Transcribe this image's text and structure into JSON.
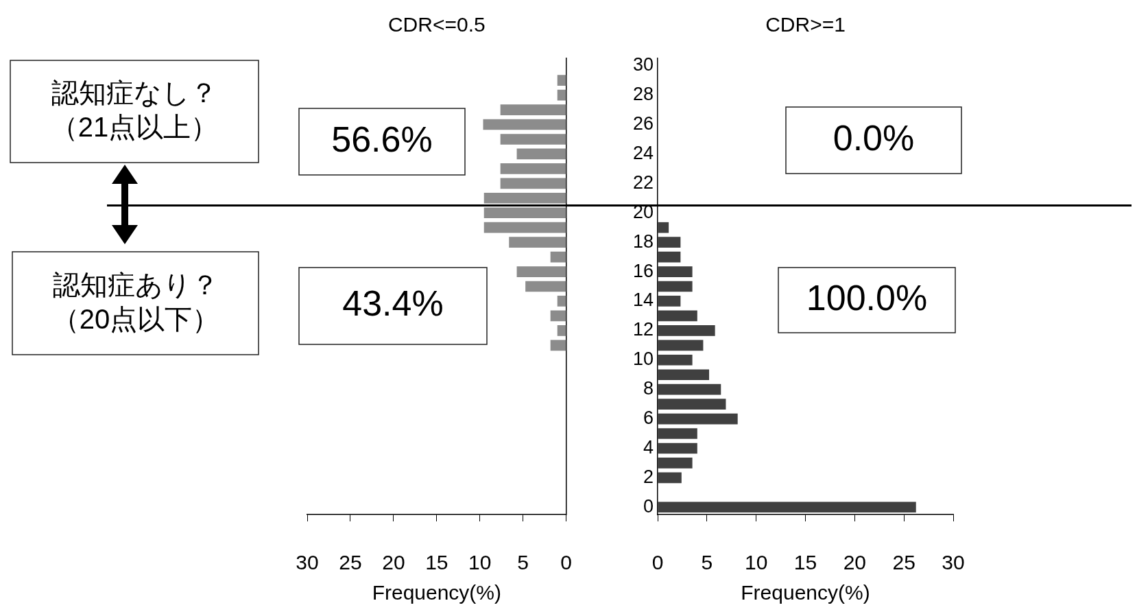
{
  "chart_data": [
    {
      "type": "bar",
      "orientation": "horizontal",
      "title": "CDR<=0.5",
      "xlabel": "Frequency(%)",
      "x": [
        11,
        12,
        13,
        14,
        15,
        16,
        17,
        18,
        19,
        20,
        21,
        22,
        23,
        24,
        25,
        26,
        27,
        28,
        29
      ],
      "values": [
        1.8,
        1.0,
        1.8,
        1.0,
        4.7,
        5.7,
        1.8,
        6.6,
        9.5,
        9.5,
        9.5,
        7.6,
        7.6,
        5.7,
        7.6,
        9.6,
        7.6,
        1.0,
        1.0
      ],
      "color": "#8c8c8c",
      "xlim": [
        30,
        0
      ],
      "xticks": [
        30,
        25,
        20,
        15,
        10,
        5,
        0
      ],
      "ylim": [
        -0.5,
        30.5
      ],
      "yticks": [
        0,
        2,
        4,
        6,
        8,
        10,
        12,
        14,
        16,
        18,
        20,
        22,
        24,
        26,
        28,
        30
      ],
      "tick_labels": "x",
      "ref_lines": [
        {
          "axis": "y",
          "value": 20.5,
          "label": null
        }
      ],
      "annotations": [
        "認知症なし？",
        "（21点以上）",
        "56.6%",
        "認知症あり？",
        "（20点以下）",
        "43.4%"
      ]
    },
    {
      "type": "bar",
      "orientation": "horizontal",
      "title": "CDR>=1",
      "xlabel": "Frequency(%)",
      "x": [
        0,
        2,
        3,
        4,
        5,
        6,
        7,
        8,
        9,
        10,
        11,
        12,
        13,
        14,
        15,
        16,
        17,
        18,
        19
      ],
      "values": [
        26.2,
        2.4,
        3.5,
        4.0,
        4.0,
        8.1,
        6.9,
        6.4,
        5.2,
        3.5,
        4.6,
        5.8,
        4.0,
        2.3,
        3.5,
        3.5,
        2.3,
        2.3,
        1.1
      ],
      "color": "#404040",
      "xlim": [
        0,
        30
      ],
      "xticks": [
        0,
        5,
        10,
        15,
        20,
        25,
        30
      ],
      "ylim": [
        -0.5,
        30.5
      ],
      "yticks": [
        0,
        2,
        4,
        6,
        8,
        10,
        12,
        14,
        16,
        18,
        20,
        22,
        24,
        26,
        28,
        30
      ],
      "ref_lines": [
        {
          "axis": "y",
          "value": 20.5,
          "label": null
        }
      ],
      "annotations": [
        "0.0%",
        "100.0%"
      ]
    }
  ]
}
